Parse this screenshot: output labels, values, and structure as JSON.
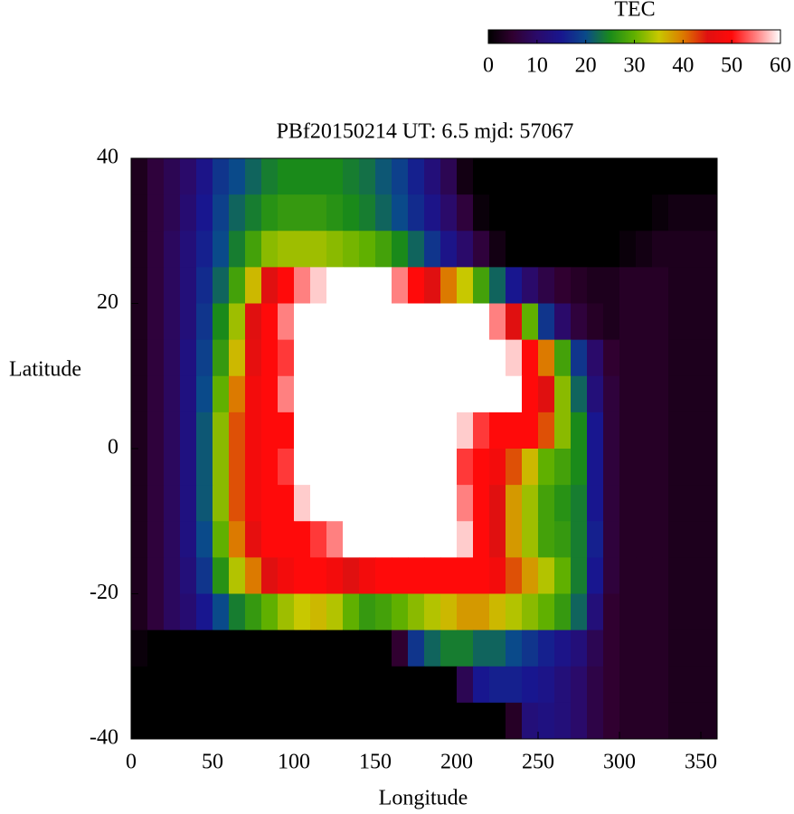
{
  "chart_data": {
    "type": "heatmap",
    "title": "PBf20150214  UT: 6.5  mjd: 57067",
    "xlabel": "Longitude",
    "ylabel": "Latitude",
    "colorbar_label": "TEC",
    "x": [
      5,
      15,
      25,
      35,
      45,
      55,
      65,
      75,
      85,
      95,
      105,
      115,
      125,
      135,
      145,
      155,
      165,
      175,
      185,
      195,
      205,
      215,
      225,
      235,
      245,
      255,
      265,
      275,
      285,
      295,
      305,
      315,
      325,
      335,
      345,
      355
    ],
    "y": [
      37.5,
      32.5,
      27.5,
      22.5,
      17.5,
      12.5,
      7.5,
      2.5,
      -2.5,
      -7.5,
      -12.5,
      -17.5,
      -22.5,
      -27.5,
      -32.5,
      -37.5
    ],
    "z": [
      [
        3,
        6,
        8,
        10,
        14,
        18,
        20,
        22,
        24,
        25,
        25,
        25,
        25,
        24,
        23,
        21,
        19,
        16,
        12,
        8,
        2,
        0,
        0,
        0,
        0,
        0,
        0,
        0,
        0,
        0,
        0,
        0,
        0,
        0,
        0,
        0
      ],
      [
        3,
        6,
        8,
        11,
        15,
        19,
        22,
        24,
        26,
        27,
        27,
        27,
        26,
        25,
        24,
        22,
        20,
        17,
        14,
        10,
        6,
        1,
        0,
        0,
        0,
        0,
        0,
        0,
        0,
        0,
        0,
        0,
        1,
        2,
        2,
        2
      ],
      [
        3,
        6,
        9,
        12,
        16,
        20,
        24,
        28,
        32,
        33,
        33,
        33,
        32,
        31,
        30,
        28,
        25,
        22,
        18,
        14,
        10,
        6,
        2,
        0,
        0,
        0,
        0,
        0,
        0,
        0,
        1,
        2,
        3,
        3,
        3,
        3
      ],
      [
        3,
        6,
        9,
        12,
        17,
        22,
        28,
        36,
        45,
        50,
        55,
        58,
        60,
        60,
        60,
        60,
        55,
        50,
        45,
        40,
        35,
        28,
        22,
        15,
        10,
        7,
        5,
        4,
        3,
        3,
        4,
        4,
        4,
        3,
        3,
        3
      ],
      [
        3,
        6,
        9,
        12,
        18,
        25,
        33,
        45,
        50,
        55,
        60,
        60,
        60,
        60,
        60,
        60,
        60,
        60,
        60,
        60,
        60,
        60,
        55,
        45,
        30,
        18,
        10,
        6,
        4,
        3,
        4,
        4,
        4,
        3,
        3,
        3
      ],
      [
        3,
        6,
        9,
        13,
        19,
        27,
        36,
        46,
        50,
        52,
        60,
        60,
        60,
        60,
        60,
        60,
        60,
        60,
        60,
        60,
        60,
        60,
        60,
        58,
        50,
        40,
        28,
        18,
        10,
        5,
        4,
        4,
        4,
        3,
        3,
        3
      ],
      [
        3,
        6,
        9,
        13,
        20,
        30,
        40,
        48,
        50,
        55,
        60,
        60,
        60,
        60,
        60,
        60,
        60,
        60,
        60,
        60,
        60,
        60,
        60,
        60,
        50,
        45,
        32,
        22,
        12,
        6,
        4,
        4,
        4,
        3,
        3,
        3
      ],
      [
        3,
        6,
        9,
        13,
        21,
        32,
        42,
        48,
        50,
        50,
        60,
        60,
        60,
        60,
        60,
        60,
        60,
        60,
        60,
        60,
        58,
        52,
        50,
        50,
        50,
        42,
        32,
        25,
        15,
        6,
        4,
        4,
        4,
        3,
        3,
        3
      ],
      [
        3,
        6,
        9,
        13,
        21,
        32,
        42,
        48,
        50,
        52,
        60,
        60,
        60,
        60,
        60,
        60,
        60,
        60,
        60,
        60,
        52,
        50,
        48,
        42,
        36,
        30,
        28,
        25,
        15,
        6,
        4,
        4,
        4,
        3,
        3,
        3
      ],
      [
        3,
        6,
        9,
        13,
        21,
        32,
        42,
        48,
        50,
        50,
        58,
        60,
        60,
        60,
        60,
        60,
        60,
        60,
        60,
        60,
        55,
        50,
        45,
        38,
        33,
        28,
        26,
        24,
        15,
        6,
        4,
        4,
        4,
        3,
        3,
        3
      ],
      [
        3,
        6,
        9,
        13,
        20,
        30,
        40,
        46,
        50,
        50,
        50,
        52,
        55,
        60,
        60,
        60,
        60,
        60,
        60,
        60,
        58,
        50,
        45,
        38,
        33,
        28,
        27,
        24,
        16,
        6,
        4,
        4,
        4,
        3,
        3,
        3
      ],
      [
        3,
        6,
        9,
        12,
        18,
        26,
        34,
        40,
        45,
        48,
        50,
        50,
        48,
        45,
        48,
        50,
        50,
        50,
        50,
        50,
        50,
        50,
        48,
        42,
        38,
        34,
        30,
        24,
        15,
        6,
        4,
        4,
        4,
        3,
        3,
        3
      ],
      [
        3,
        6,
        9,
        11,
        15,
        20,
        24,
        27,
        30,
        33,
        35,
        36,
        34,
        30,
        27,
        28,
        30,
        32,
        34,
        36,
        38,
        38,
        36,
        34,
        32,
        30,
        27,
        22,
        12,
        5,
        4,
        4,
        4,
        3,
        3,
        3
      ],
      [
        1,
        0,
        0,
        0,
        0,
        0,
        0,
        0,
        0,
        0,
        0,
        0,
        0,
        0,
        0,
        0,
        5,
        18,
        22,
        24,
        24,
        22,
        22,
        20,
        18,
        16,
        14,
        12,
        8,
        5,
        4,
        4,
        4,
        3,
        3,
        3
      ],
      [
        0,
        0,
        0,
        0,
        0,
        0,
        0,
        0,
        0,
        0,
        0,
        0,
        0,
        0,
        0,
        0,
        0,
        0,
        0,
        0,
        8,
        15,
        16,
        16,
        15,
        14,
        12,
        10,
        7,
        5,
        4,
        4,
        4,
        3,
        3,
        3
      ],
      [
        0,
        0,
        0,
        0,
        0,
        0,
        0,
        0,
        0,
        0,
        0,
        0,
        0,
        0,
        0,
        0,
        0,
        0,
        0,
        0,
        0,
        0,
        0,
        4,
        12,
        13,
        12,
        10,
        7,
        5,
        4,
        4,
        4,
        3,
        3,
        3
      ]
    ],
    "xlim": [
      0,
      360
    ],
    "xticks": [
      0,
      50,
      100,
      150,
      200,
      250,
      300,
      350
    ],
    "ylim": [
      -40,
      40
    ],
    "yticks": [
      -40,
      -20,
      0,
      20,
      40
    ],
    "zlim": [
      0,
      60
    ],
    "zticks": [
      0,
      10,
      20,
      30,
      40,
      50,
      60
    ],
    "colormap": [
      "#000000",
      "#300030",
      "#2a0a6a",
      "#18168f",
      "#0a4a8a",
      "#1a8a1a",
      "#60b000",
      "#c8c800",
      "#dc7a00",
      "#e01010",
      "#ff0a0a",
      "#ff8080",
      "#ffffff"
    ]
  }
}
